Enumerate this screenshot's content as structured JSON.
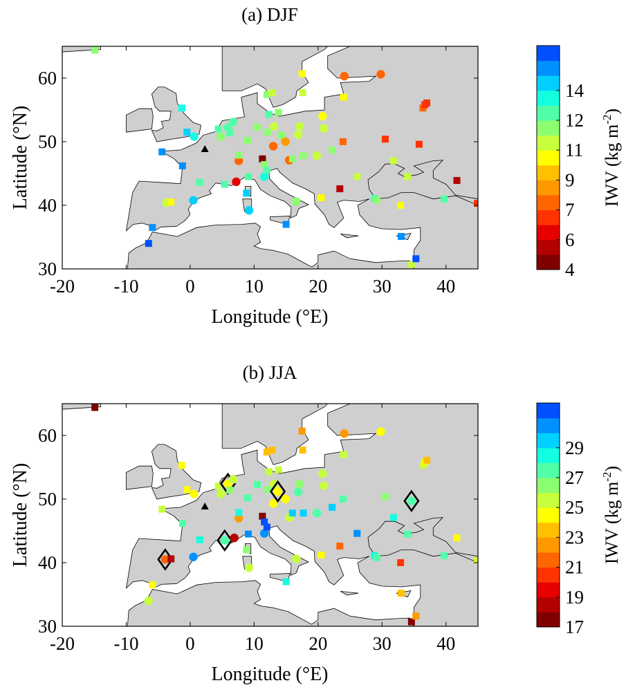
{
  "chart_data": [
    {
      "type": "scatter",
      "title": "(a) DJF",
      "xlabel": "Longitude (°E)",
      "ylabel": "Latitude (°N)",
      "xlim": [
        -20,
        45
      ],
      "ylim": [
        30,
        65
      ],
      "xticks": [
        "-20",
        "-10",
        "0",
        "10",
        "20",
        "30",
        "40"
      ],
      "yticks": [
        "30",
        "40",
        "50",
        "60"
      ],
      "colorbar": {
        "label": "IWV (kg m-2)",
        "range": [
          4,
          15
        ],
        "tick_labels": [
          "4",
          "6",
          "7",
          "9",
          "11",
          "12",
          "14"
        ],
        "colors": [
          "#800000",
          "#b30000",
          "#e60000",
          "#ff3300",
          "#ff6600",
          "#ff9900",
          "#ffc000",
          "#ffff00",
          "#c8ff3c",
          "#8cff70",
          "#50ffa8",
          "#14ffe0",
          "#00d0ff",
          "#0090ff",
          "#0050ff"
        ]
      },
      "markers": {
        "square": "station",
        "circle": "station",
        "triangle": "station"
      },
      "points": [
        {
          "lon": -14.9,
          "lat": 64.4,
          "v": 10.6,
          "m": "s"
        },
        {
          "lon": -6.5,
          "lat": 34.0,
          "v": 14.6,
          "m": "s"
        },
        {
          "lon": -5.9,
          "lat": 36.5,
          "v": 14.1,
          "m": "s"
        },
        {
          "lon": -4.4,
          "lat": 48.4,
          "v": 13.9,
          "m": "s"
        },
        {
          "lon": -3.7,
          "lat": 40.4,
          "v": 10.1,
          "m": "c"
        },
        {
          "lon": -3.0,
          "lat": 40.5,
          "v": 9.6,
          "m": "s"
        },
        {
          "lon": -1.2,
          "lat": 46.2,
          "v": 13.6,
          "m": "s"
        },
        {
          "lon": -1.3,
          "lat": 55.3,
          "v": 12.2,
          "m": "s"
        },
        {
          "lon": -0.5,
          "lat": 51.5,
          "v": 13.2,
          "m": "s"
        },
        {
          "lon": 0.5,
          "lat": 40.8,
          "v": 13.1,
          "m": "c"
        },
        {
          "lon": 0.6,
          "lat": 50.8,
          "v": 12.6,
          "m": "c"
        },
        {
          "lon": 1.5,
          "lat": 43.6,
          "v": 12.0,
          "m": "s"
        },
        {
          "lon": 2.3,
          "lat": 48.8,
          "v": 0,
          "m": "t"
        },
        {
          "lon": 4.4,
          "lat": 52.0,
          "v": 11.5,
          "m": "s"
        },
        {
          "lon": 4.8,
          "lat": 50.8,
          "v": 11.3,
          "m": "c"
        },
        {
          "lon": 5.4,
          "lat": 43.3,
          "v": 11.5,
          "m": "s"
        },
        {
          "lon": 5.9,
          "lat": 52.2,
          "v": 11.8,
          "m": "c"
        },
        {
          "lon": 6.2,
          "lat": 51.4,
          "v": 11.4,
          "m": "s"
        },
        {
          "lon": 6.7,
          "lat": 53.1,
          "v": 11.5,
          "m": "c"
        },
        {
          "lon": 7.2,
          "lat": 43.7,
          "v": 5.6,
          "m": "c"
        },
        {
          "lon": 7.6,
          "lat": 47.0,
          "v": 7.3,
          "m": "c"
        },
        {
          "lon": 7.6,
          "lat": 47.9,
          "v": 10.8,
          "m": "s"
        },
        {
          "lon": 8.8,
          "lat": 41.9,
          "v": 13.3,
          "m": "s"
        },
        {
          "lon": 9.0,
          "lat": 50.2,
          "v": 11.2,
          "m": "s"
        },
        {
          "lon": 9.1,
          "lat": 44.5,
          "v": 11.5,
          "m": "s"
        },
        {
          "lon": 9.2,
          "lat": 39.2,
          "v": 13.1,
          "m": "c"
        },
        {
          "lon": 10.5,
          "lat": 52.3,
          "v": 11.3,
          "m": "s"
        },
        {
          "lon": 11.3,
          "lat": 47.3,
          "v": 4.5,
          "m": "s"
        },
        {
          "lon": 11.6,
          "lat": 44.5,
          "v": 12.6,
          "m": "c"
        },
        {
          "lon": 11.6,
          "lat": 46.4,
          "v": 11.2,
          "m": "s"
        },
        {
          "lon": 12.0,
          "lat": 45.5,
          "v": 11.5,
          "m": "s"
        },
        {
          "lon": 12.0,
          "lat": 57.4,
          "v": 10.6,
          "m": "s"
        },
        {
          "lon": 12.1,
          "lat": 51.5,
          "v": 10.7,
          "m": "s"
        },
        {
          "lon": 12.3,
          "lat": 54.3,
          "v": 11.4,
          "m": "s"
        },
        {
          "lon": 12.8,
          "lat": 57.7,
          "v": 10.3,
          "m": "s"
        },
        {
          "lon": 13.0,
          "lat": 49.3,
          "v": 7.5,
          "m": "c"
        },
        {
          "lon": 13.1,
          "lat": 52.4,
          "v": 10.4,
          "m": "c"
        },
        {
          "lon": 13.8,
          "lat": 54.6,
          "v": 11.1,
          "m": "s"
        },
        {
          "lon": 14.3,
          "lat": 51.0,
          "v": 10.8,
          "m": "c"
        },
        {
          "lon": 14.9,
          "lat": 50.0,
          "v": 7.7,
          "m": "c"
        },
        {
          "lon": 15.0,
          "lat": 37.0,
          "v": 13.9,
          "m": "s"
        },
        {
          "lon": 15.5,
          "lat": 47.1,
          "v": 7.3,
          "m": "c"
        },
        {
          "lon": 16.0,
          "lat": 47.3,
          "v": 10.9,
          "m": "s"
        },
        {
          "lon": 16.6,
          "lat": 40.6,
          "v": 11.1,
          "m": "c"
        },
        {
          "lon": 16.9,
          "lat": 51.1,
          "v": 10.2,
          "m": "c"
        },
        {
          "lon": 17.1,
          "lat": 52.4,
          "v": 10.2,
          "m": "c"
        },
        {
          "lon": 17.5,
          "lat": 60.7,
          "v": 9.5,
          "m": "s"
        },
        {
          "lon": 17.6,
          "lat": 57.7,
          "v": 10.1,
          "m": "s"
        },
        {
          "lon": 17.7,
          "lat": 47.8,
          "v": 10.8,
          "m": "s"
        },
        {
          "lon": 19.8,
          "lat": 47.8,
          "v": 9.9,
          "m": "c"
        },
        {
          "lon": 20.5,
          "lat": 41.2,
          "v": 9.5,
          "m": "s"
        },
        {
          "lon": 20.7,
          "lat": 54.0,
          "v": 9.3,
          "m": "c"
        },
        {
          "lon": 20.9,
          "lat": 52.1,
          "v": 10.1,
          "m": "c"
        },
        {
          "lon": 22.2,
          "lat": 48.7,
          "v": 10.9,
          "m": "s"
        },
        {
          "lon": 23.4,
          "lat": 42.6,
          "v": 5.4,
          "m": "s"
        },
        {
          "lon": 23.9,
          "lat": 50.0,
          "v": 7.3,
          "m": "s"
        },
        {
          "lon": 24.0,
          "lat": 57.0,
          "v": 9.2,
          "m": "s"
        },
        {
          "lon": 24.1,
          "lat": 60.3,
          "v": 7.3,
          "m": "c"
        },
        {
          "lon": 26.1,
          "lat": 44.5,
          "v": 10.3,
          "m": "s"
        },
        {
          "lon": 28.8,
          "lat": 41.1,
          "v": 11.6,
          "m": "s"
        },
        {
          "lon": 29.2,
          "lat": 40.8,
          "v": 11.2,
          "m": "s"
        },
        {
          "lon": 29.8,
          "lat": 60.6,
          "v": 7.3,
          "m": "c"
        },
        {
          "lon": 30.5,
          "lat": 50.4,
          "v": 6.9,
          "m": "s"
        },
        {
          "lon": 31.8,
          "lat": 47.0,
          "v": 10.2,
          "m": "s"
        },
        {
          "lon": 32.9,
          "lat": 40.0,
          "v": 9.3,
          "m": "s"
        },
        {
          "lon": 33.0,
          "lat": 35.1,
          "v": 13.6,
          "m": "s"
        },
        {
          "lon": 34.0,
          "lat": 44.5,
          "v": 10.4,
          "m": "s"
        },
        {
          "lon": 34.6,
          "lat": 30.7,
          "v": 10.4,
          "m": "s"
        },
        {
          "lon": 35.3,
          "lat": 31.6,
          "v": 14.3,
          "m": "s"
        },
        {
          "lon": 35.8,
          "lat": 49.6,
          "v": 6.7,
          "m": "s"
        },
        {
          "lon": 36.4,
          "lat": 55.3,
          "v": 7.6,
          "m": "s"
        },
        {
          "lon": 36.7,
          "lat": 55.8,
          "v": 6.9,
          "m": "s"
        },
        {
          "lon": 37.0,
          "lat": 56.1,
          "v": 6.4,
          "m": "s"
        },
        {
          "lon": 39.7,
          "lat": 41.0,
          "v": 11.7,
          "m": "s"
        },
        {
          "lon": 41.7,
          "lat": 43.9,
          "v": 5.4,
          "m": "s"
        },
        {
          "lon": 44.9,
          "lat": 40.3,
          "v": 6.4,
          "m": "s"
        }
      ]
    },
    {
      "type": "scatter",
      "title": "(b) JJA",
      "xlabel": "Longitude (°E)",
      "ylabel": "Latitude (°N)",
      "xlim": [
        -20,
        45
      ],
      "ylim": [
        30,
        65
      ],
      "xticks": [
        "-20",
        "-10",
        "0",
        "10",
        "20",
        "30",
        "40"
      ],
      "yticks": [
        "30",
        "40",
        "50",
        "60"
      ],
      "colorbar": {
        "label": "IWV (kg m-2)",
        "range": [
          17,
          30
        ],
        "tick_labels": [
          "17",
          "19",
          "21",
          "23",
          "25",
          "27",
          "29"
        ],
        "colors": [
          "#800000",
          "#b30000",
          "#e60000",
          "#ff3300",
          "#ff6600",
          "#ff9900",
          "#ffc000",
          "#ffff00",
          "#c8ff3c",
          "#8cff70",
          "#50ffa8",
          "#14ffe0",
          "#00d0ff",
          "#0090ff",
          "#0050ff"
        ]
      },
      "points": [
        {
          "lon": -14.9,
          "lat": 64.4,
          "v": 17.8,
          "m": "s"
        },
        {
          "lon": -6.5,
          "lat": 34.0,
          "v": 24.5,
          "m": "c"
        },
        {
          "lon": -5.9,
          "lat": 36.5,
          "v": 23.2,
          "m": "s"
        },
        {
          "lon": -4.4,
          "lat": 48.4,
          "v": 24.2,
          "m": "s"
        },
        {
          "lon": -3.9,
          "lat": 40.5,
          "v": 21.0,
          "m": "c",
          "d": true
        },
        {
          "lon": -3.0,
          "lat": 40.6,
          "v": 18.7,
          "m": "s"
        },
        {
          "lon": -1.2,
          "lat": 46.2,
          "v": 25.8,
          "m": "s"
        },
        {
          "lon": -1.3,
          "lat": 55.3,
          "v": 23.2,
          "m": "s"
        },
        {
          "lon": -0.5,
          "lat": 51.5,
          "v": 23.5,
          "m": "s"
        },
        {
          "lon": 0.5,
          "lat": 40.9,
          "v": 29.0,
          "m": "c"
        },
        {
          "lon": 0.6,
          "lat": 50.8,
          "v": 23.9,
          "m": "c"
        },
        {
          "lon": 1.5,
          "lat": 43.6,
          "v": 26.9,
          "m": "s"
        },
        {
          "lon": 2.3,
          "lat": 48.8,
          "v": 0,
          "m": "t"
        },
        {
          "lon": 4.4,
          "lat": 52.0,
          "v": 24.0,
          "m": "s"
        },
        {
          "lon": 4.8,
          "lat": 50.8,
          "v": 24.3,
          "m": "c"
        },
        {
          "lon": 5.4,
          "lat": 43.5,
          "v": 25.9,
          "m": "c",
          "d": true
        },
        {
          "lon": 5.9,
          "lat": 52.4,
          "v": 23.9,
          "m": "c",
          "d": true
        },
        {
          "lon": 6.2,
          "lat": 51.4,
          "v": 25.2,
          "m": "s"
        },
        {
          "lon": 6.7,
          "lat": 53.1,
          "v": 24.7,
          "m": "c"
        },
        {
          "lon": 6.9,
          "lat": 43.9,
          "v": 18.2,
          "m": "c"
        },
        {
          "lon": 7.6,
          "lat": 47.0,
          "v": 21.5,
          "m": "c"
        },
        {
          "lon": 7.6,
          "lat": 47.9,
          "v": 27.4,
          "m": "s"
        },
        {
          "lon": 8.8,
          "lat": 42.0,
          "v": 25.1,
          "m": "s"
        },
        {
          "lon": 9.0,
          "lat": 50.2,
          "v": 26.1,
          "m": "s"
        },
        {
          "lon": 9.1,
          "lat": 44.5,
          "v": 28.7,
          "m": "s"
        },
        {
          "lon": 9.2,
          "lat": 39.2,
          "v": 24.2,
          "m": "c"
        },
        {
          "lon": 10.5,
          "lat": 52.3,
          "v": 25.9,
          "m": "s"
        },
        {
          "lon": 11.3,
          "lat": 47.3,
          "v": 17.3,
          "m": "s"
        },
        {
          "lon": 11.6,
          "lat": 44.6,
          "v": 29.1,
          "m": "c"
        },
        {
          "lon": 11.6,
          "lat": 46.4,
          "v": 29.6,
          "m": "s"
        },
        {
          "lon": 12.0,
          "lat": 45.6,
          "v": 29.8,
          "m": "s"
        },
        {
          "lon": 12.0,
          "lat": 57.4,
          "v": 22.9,
          "m": "s"
        },
        {
          "lon": 12.1,
          "lat": 51.5,
          "v": 25.5,
          "m": "s"
        },
        {
          "lon": 12.3,
          "lat": 54.3,
          "v": 24.2,
          "m": "s"
        },
        {
          "lon": 12.8,
          "lat": 57.7,
          "v": 22.3,
          "m": "s"
        },
        {
          "lon": 13.0,
          "lat": 49.3,
          "v": 23.2,
          "m": "c"
        },
        {
          "lon": 13.1,
          "lat": 52.4,
          "v": 24.6,
          "m": "c"
        },
        {
          "lon": 13.8,
          "lat": 54.6,
          "v": 24.4,
          "m": "s"
        },
        {
          "lon": 13.7,
          "lat": 51.2,
          "v": 23.4,
          "m": "c",
          "d": true
        },
        {
          "lon": 14.9,
          "lat": 50.0,
          "v": 23.1,
          "m": "c"
        },
        {
          "lon": 15.0,
          "lat": 37.0,
          "v": 27.0,
          "m": "s"
        },
        {
          "lon": 15.5,
          "lat": 47.1,
          "v": 24.7,
          "m": "c"
        },
        {
          "lon": 16.0,
          "lat": 47.8,
          "v": 27.9,
          "m": "s"
        },
        {
          "lon": 16.6,
          "lat": 40.6,
          "v": 24.5,
          "m": "c"
        },
        {
          "lon": 16.9,
          "lat": 51.1,
          "v": 26.1,
          "m": "c"
        },
        {
          "lon": 17.1,
          "lat": 52.4,
          "v": 25.3,
          "m": "c"
        },
        {
          "lon": 17.5,
          "lat": 60.7,
          "v": 21.9,
          "m": "s"
        },
        {
          "lon": 17.6,
          "lat": 57.7,
          "v": 22.7,
          "m": "s"
        },
        {
          "lon": 17.7,
          "lat": 47.8,
          "v": 27.9,
          "m": "s"
        },
        {
          "lon": 19.8,
          "lat": 47.8,
          "v": 26.0,
          "m": "c"
        },
        {
          "lon": 20.5,
          "lat": 41.2,
          "v": 23.2,
          "m": "s"
        },
        {
          "lon": 20.7,
          "lat": 54.0,
          "v": 24.4,
          "m": "c"
        },
        {
          "lon": 20.9,
          "lat": 52.1,
          "v": 24.7,
          "m": "c"
        },
        {
          "lon": 22.2,
          "lat": 48.7,
          "v": 27.6,
          "m": "s"
        },
        {
          "lon": 23.4,
          "lat": 42.6,
          "v": 21.3,
          "m": "s"
        },
        {
          "lon": 23.9,
          "lat": 50.0,
          "v": 25.8,
          "m": "s"
        },
        {
          "lon": 24.0,
          "lat": 57.0,
          "v": 24.2,
          "m": "s"
        },
        {
          "lon": 24.1,
          "lat": 60.3,
          "v": 21.9,
          "m": "c"
        },
        {
          "lon": 26.1,
          "lat": 44.6,
          "v": 28.4,
          "m": "s"
        },
        {
          "lon": 28.8,
          "lat": 41.1,
          "v": 27.0,
          "m": "s"
        },
        {
          "lon": 29.2,
          "lat": 40.8,
          "v": 26.2,
          "m": "s"
        },
        {
          "lon": 29.8,
          "lat": 60.6,
          "v": 23.1,
          "m": "c"
        },
        {
          "lon": 30.5,
          "lat": 50.4,
          "v": 25.6,
          "m": "s"
        },
        {
          "lon": 31.8,
          "lat": 47.1,
          "v": 27.4,
          "m": "s"
        },
        {
          "lon": 32.9,
          "lat": 40.0,
          "v": 20.3,
          "m": "s"
        },
        {
          "lon": 33.0,
          "lat": 35.2,
          "v": 23.0,
          "m": "s"
        },
        {
          "lon": 34.0,
          "lat": 44.5,
          "v": 25.8,
          "m": "s"
        },
        {
          "lon": 34.6,
          "lat": 30.7,
          "v": 17.3,
          "m": "s"
        },
        {
          "lon": 35.3,
          "lat": 31.6,
          "v": 21.4,
          "m": "s"
        },
        {
          "lon": 34.6,
          "lat": 49.7,
          "v": 25.8,
          "m": "c",
          "d": true
        },
        {
          "lon": 36.4,
          "lat": 55.3,
          "v": 24.4,
          "m": "s"
        },
        {
          "lon": 36.7,
          "lat": 55.8,
          "v": 23.5,
          "m": "s"
        },
        {
          "lon": 37.0,
          "lat": 56.1,
          "v": 23.0,
          "m": "s"
        },
        {
          "lon": 39.7,
          "lat": 41.1,
          "v": 26.4,
          "m": "s"
        },
        {
          "lon": 41.7,
          "lat": 43.9,
          "v": 23.1,
          "m": "s"
        },
        {
          "lon": 44.9,
          "lat": 40.4,
          "v": 24.3,
          "m": "s"
        }
      ]
    }
  ]
}
